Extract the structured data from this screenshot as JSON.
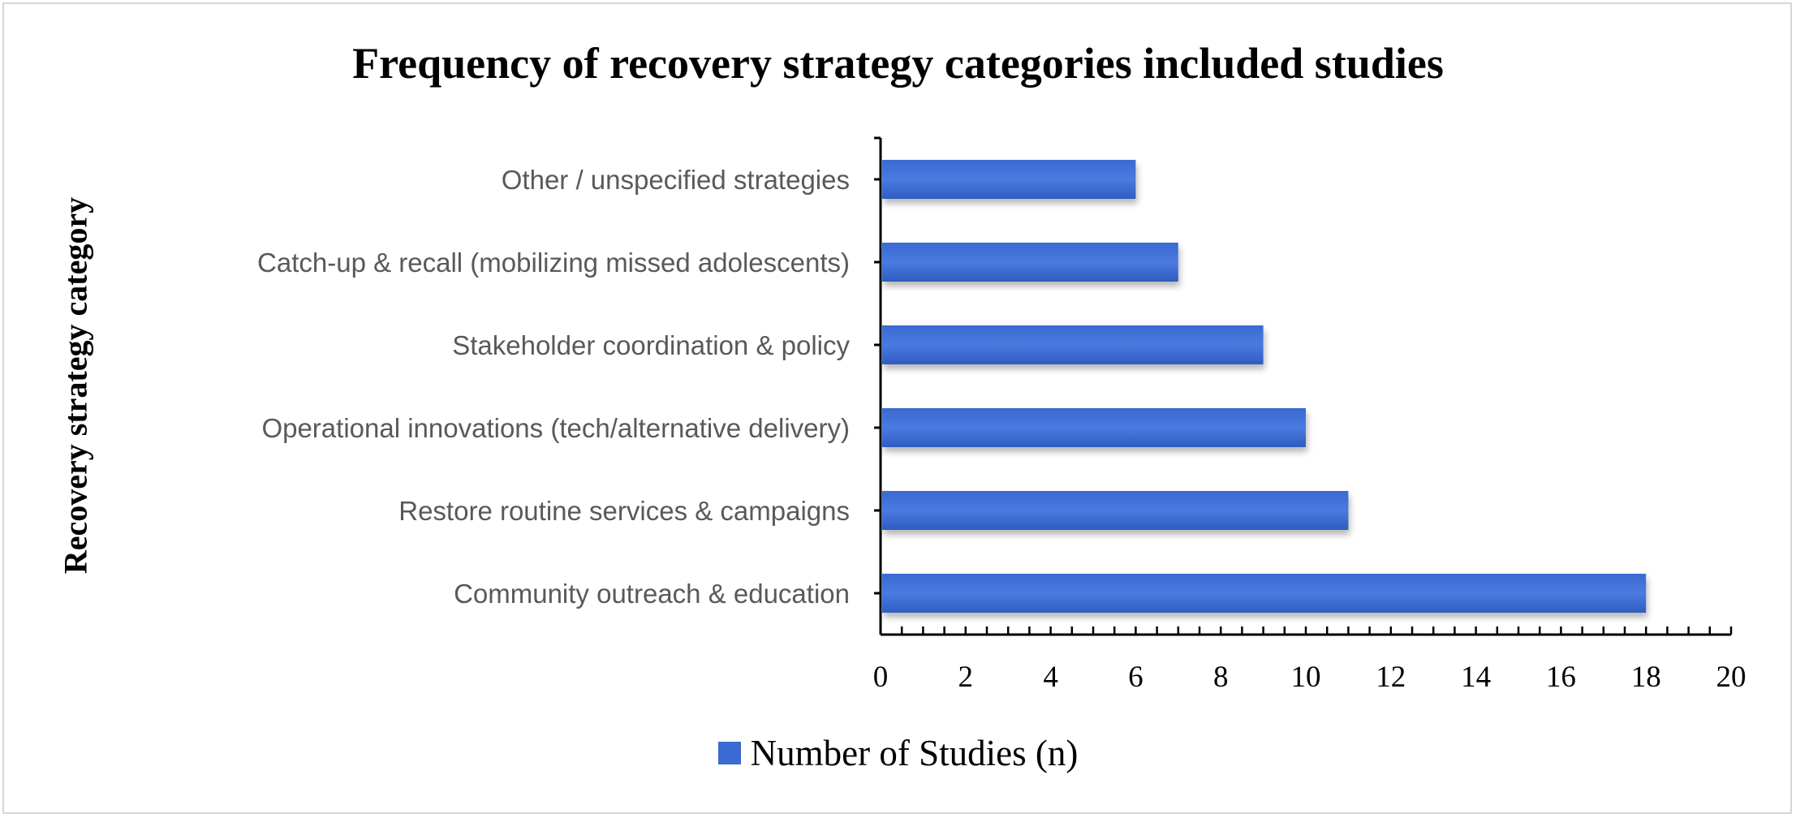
{
  "chart_data": {
    "type": "bar",
    "orientation": "horizontal",
    "title": "Frequency of recovery strategy categories included studies",
    "ylabel": "Recovery strategy category",
    "xlabel": "",
    "categories": [
      "Other / unspecified strategies",
      "Catch-up & recall (mobilizing missed adolescents)",
      "Stakeholder coordination & policy",
      "Operational innovations (tech/alternative delivery)",
      "Restore routine services & campaigns",
      "Community outreach & education"
    ],
    "series": [
      {
        "name": "Number of Studies (n)",
        "values": [
          6,
          7,
          9,
          10,
          11,
          18
        ],
        "color": "#3a6ad2"
      }
    ],
    "xlim": [
      0,
      20
    ],
    "xticks": [
      "0",
      "2",
      "4",
      "6",
      "8",
      "10",
      "12",
      "14",
      "16",
      "18",
      "20"
    ],
    "grid": false,
    "legend": "bottom"
  }
}
